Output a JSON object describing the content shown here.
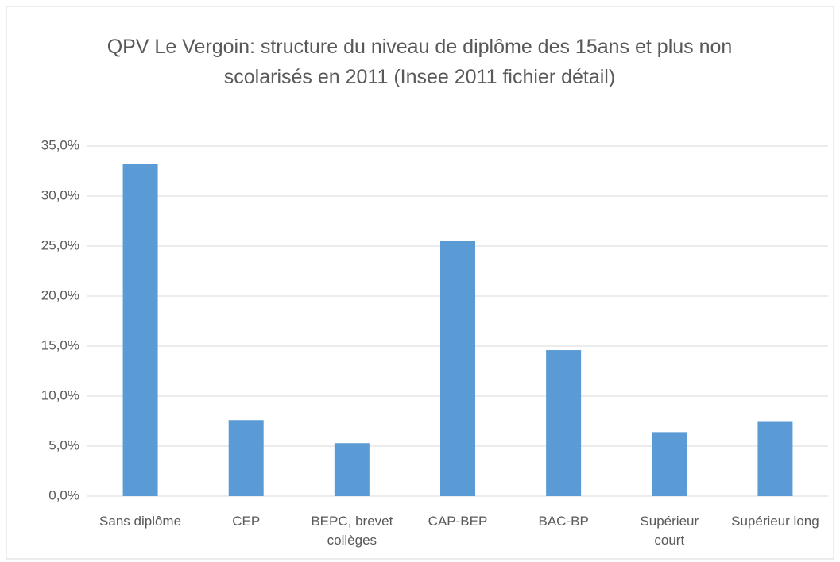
{
  "chart_data": {
    "type": "bar",
    "title": "QPV Le Vergoin: structure du niveau de diplôme  des 15ans et plus non scolarisés en 2011 (Insee 2011 fichier détail)",
    "categories": [
      "Sans diplôme",
      "CEP",
      "BEPC, brevet collèges",
      "CAP-BEP",
      "BAC-BP",
      "Supérieur court",
      "Supérieur long"
    ],
    "values": [
      33.2,
      7.6,
      5.3,
      25.5,
      14.6,
      6.4,
      7.5
    ],
    "color": "#5b9bd5",
    "ylim": [
      0,
      35
    ],
    "yticks": [
      {
        "value": 0,
        "label": "0,0%"
      },
      {
        "value": 5,
        "label": "5,0%"
      },
      {
        "value": 10,
        "label": "10,0%"
      },
      {
        "value": 15,
        "label": "15,0%"
      },
      {
        "value": 20,
        "label": "20,0%"
      },
      {
        "value": 25,
        "label": "25,0%"
      },
      {
        "value": 30,
        "label": "30,0%"
      },
      {
        "value": 35,
        "label": "35,0%"
      }
    ],
    "grid": true
  }
}
